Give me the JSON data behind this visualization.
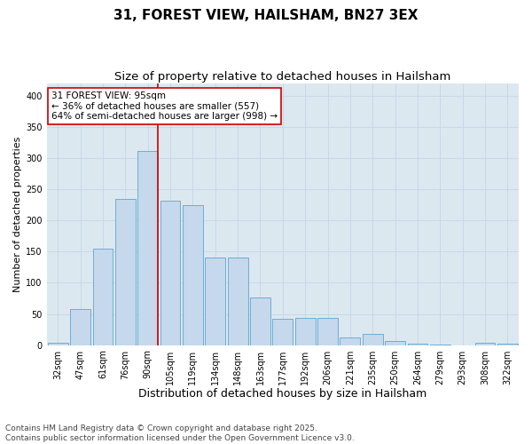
{
  "title": "31, FOREST VIEW, HAILSHAM, BN27 3EX",
  "subtitle": "Size of property relative to detached houses in Hailsham",
  "xlabel": "Distribution of detached houses by size in Hailsham",
  "ylabel": "Number of detached properties",
  "bar_labels": [
    "32sqm",
    "47sqm",
    "61sqm",
    "76sqm",
    "90sqm",
    "105sqm",
    "119sqm",
    "134sqm",
    "148sqm",
    "163sqm",
    "177sqm",
    "192sqm",
    "206sqm",
    "221sqm",
    "235sqm",
    "250sqm",
    "264sqm",
    "279sqm",
    "293sqm",
    "308sqm",
    "322sqm"
  ],
  "bar_values": [
    3,
    58,
    155,
    235,
    312,
    232,
    225,
    140,
    140,
    77,
    42,
    44,
    44,
    12,
    18,
    7,
    2,
    1,
    0,
    4,
    2
  ],
  "bar_color": "#c5d8ec",
  "bar_edge_color": "#6baed6",
  "vline_color": "#cc0000",
  "annotation_text": "31 FOREST VIEW: 95sqm\n← 36% of detached houses are smaller (557)\n64% of semi-detached houses are larger (998) →",
  "annotation_box_edgecolor": "#cc0000",
  "annotation_box_facecolor": "#ffffff",
  "ylim": [
    0,
    420
  ],
  "yticks": [
    0,
    50,
    100,
    150,
    200,
    250,
    300,
    350,
    400
  ],
  "grid_color": "#c8d8e8",
  "background_color": "#dce8f0",
  "footer_text": "Contains HM Land Registry data © Crown copyright and database right 2025.\nContains public sector information licensed under the Open Government Licence v3.0.",
  "title_fontsize": 11,
  "subtitle_fontsize": 9.5,
  "xlabel_fontsize": 9,
  "ylabel_fontsize": 8,
  "tick_fontsize": 7,
  "annotation_fontsize": 7.5,
  "footer_fontsize": 6.5
}
